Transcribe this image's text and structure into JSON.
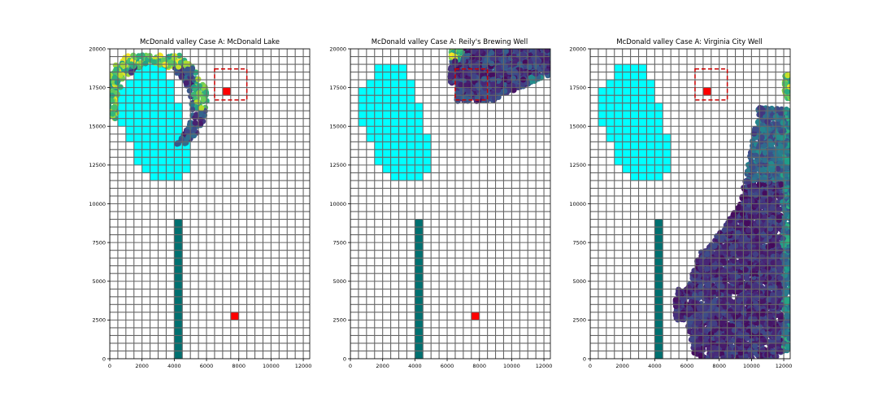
{
  "figure": {
    "background": "#ffffff"
  },
  "chart_data": [
    {
      "type": "scatter",
      "title": "McDonald valley Case A: McDonald Lake",
      "xlabel": "",
      "ylabel": "",
      "xlim": [
        0,
        12400
      ],
      "ylim": [
        0,
        20000
      ],
      "xticks": [
        0,
        2000,
        4000,
        6000,
        8000,
        10000,
        12000
      ],
      "yticks": [
        0,
        2500,
        5000,
        7500,
        10000,
        12500,
        15000,
        17500,
        20000
      ],
      "particles": {
        "kind": "lake",
        "colormap": "viridis"
      }
    },
    {
      "type": "scatter",
      "title": "McDonald valley Case A: Reily's Brewing Well",
      "xlabel": "",
      "ylabel": "",
      "xlim": [
        0,
        12400
      ],
      "ylim": [
        0,
        20000
      ],
      "xticks": [
        0,
        2000,
        4000,
        6000,
        8000,
        10000,
        12000
      ],
      "yticks": [
        0,
        2500,
        5000,
        7500,
        10000,
        12500,
        15000,
        17500,
        20000
      ],
      "particles": {
        "kind": "brewing",
        "colormap": "viridis"
      }
    },
    {
      "type": "scatter",
      "title": "McDonald valley Case A: Virginia City Well",
      "xlabel": "",
      "ylabel": "",
      "xlim": [
        0,
        12400
      ],
      "ylim": [
        0,
        20000
      ],
      "xticks": [
        0,
        2000,
        4000,
        6000,
        8000,
        10000,
        12000
      ],
      "yticks": [
        0,
        2500,
        5000,
        7500,
        10000,
        12500,
        15000,
        17500,
        20000
      ],
      "particles": {
        "kind": "city",
        "colormap": "viridis"
      }
    }
  ],
  "model_grid": {
    "ncol": 25,
    "nrow": 40,
    "cell_size": 500,
    "line_color": "#666666"
  },
  "features": {
    "lake": {
      "color": "#00ffff",
      "rows": [
        {
          "y0": 18000,
          "y1": 19000,
          "x0": 1500,
          "x1": 3500
        },
        {
          "y0": 17500,
          "y1": 18000,
          "x0": 1000,
          "x1": 4000
        },
        {
          "y0": 16500,
          "y1": 17500,
          "x0": 500,
          "x1": 4000
        },
        {
          "y0": 15000,
          "y1": 16500,
          "x0": 500,
          "x1": 4500
        },
        {
          "y0": 14500,
          "y1": 15000,
          "x0": 1000,
          "x1": 4500
        },
        {
          "y0": 14000,
          "y1": 14500,
          "x0": 1000,
          "x1": 5000
        },
        {
          "y0": 13000,
          "y1": 14000,
          "x0": 1500,
          "x1": 5000
        },
        {
          "y0": 12500,
          "y1": 13000,
          "x0": 1500,
          "x1": 5000
        },
        {
          "y0": 12000,
          "y1": 12500,
          "x0": 2000,
          "x1": 5000
        },
        {
          "y0": 11500,
          "y1": 12000,
          "x0": 2500,
          "x1": 4500
        }
      ]
    },
    "stream": {
      "color": "#007070",
      "x0": 4000,
      "x1": 4500,
      "y0": 0,
      "y1": 9000
    },
    "wells": [
      {
        "name": "reily",
        "color": "#ff0000",
        "x0": 7000,
        "x1": 7500,
        "y0": 17000,
        "y1": 17500
      },
      {
        "name": "virginia",
        "color": "#ff0000",
        "x0": 7500,
        "x1": 8000,
        "y0": 2500,
        "y1": 3000
      }
    ],
    "box": {
      "color": "#cc0000",
      "x0": 6500,
      "x1": 8500,
      "y0": 16700,
      "y1": 18700
    }
  },
  "colormap_stops": [
    "#440154",
    "#482878",
    "#3e4a89",
    "#31688e",
    "#26828e",
    "#1f9e89",
    "#35b779",
    "#6ece58",
    "#b5de2b",
    "#fde725"
  ]
}
